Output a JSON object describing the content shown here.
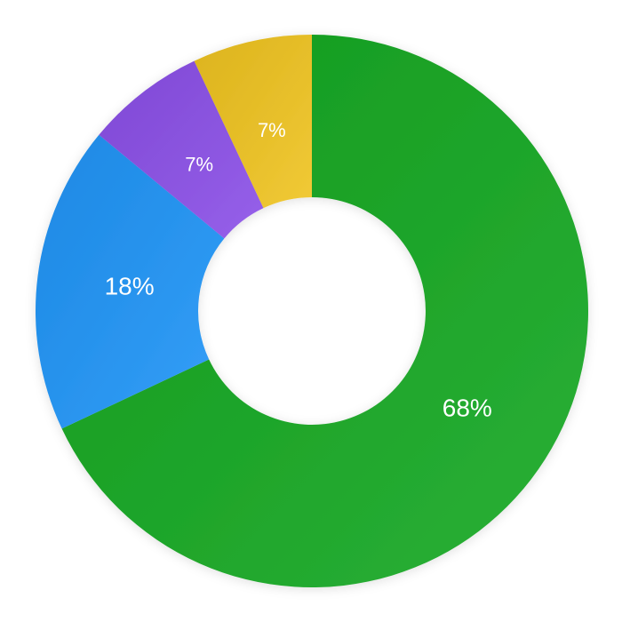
{
  "chart_data": {
    "type": "donut",
    "values": [
      68,
      18,
      7,
      7
    ],
    "value_labels": [
      "68%",
      "18%",
      "7%",
      "7%"
    ],
    "colors": [
      "#14a821",
      "#1f95f8",
      "#8b4fe8",
      "#f0c420"
    ]
  }
}
